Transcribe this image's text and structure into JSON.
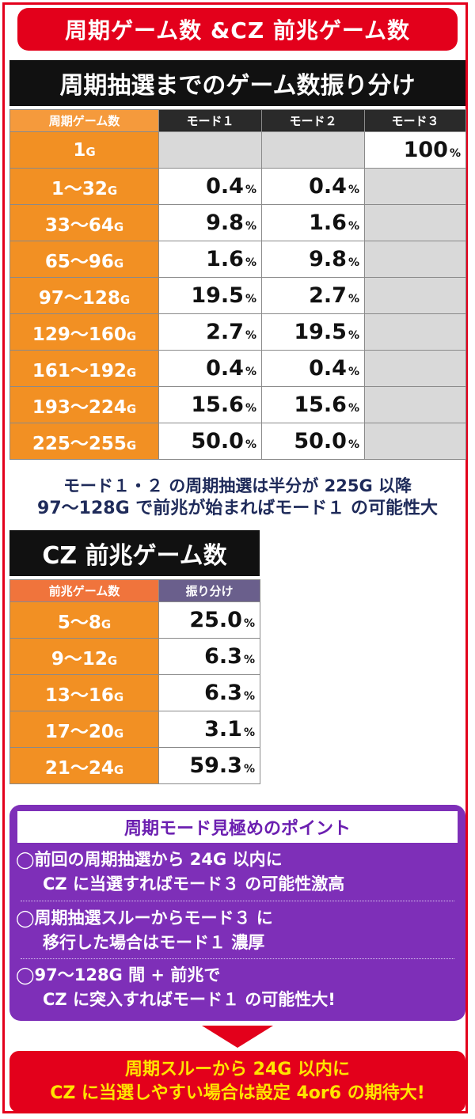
{
  "banner_title": "周期ゲーム数 &CZ 前兆ゲーム数",
  "section1": {
    "title": "周期抽選までのゲーム数振り分け",
    "headers": [
      "周期ゲーム数",
      "モード１",
      "モード２",
      "モード３"
    ],
    "rows": [
      {
        "range": "1",
        "unit": "G",
        "m1": null,
        "m2": null,
        "m3": "100"
      },
      {
        "range": "1〜32",
        "unit": "G",
        "m1": "0.4",
        "m2": "0.4",
        "m3": null
      },
      {
        "range": "33〜64",
        "unit": "G",
        "m1": "9.8",
        "m2": "1.6",
        "m3": null
      },
      {
        "range": "65〜96",
        "unit": "G",
        "m1": "1.6",
        "m2": "9.8",
        "m3": null
      },
      {
        "range": "97〜128",
        "unit": "G",
        "m1": "19.5",
        "m2": "2.7",
        "m3": null
      },
      {
        "range": "129〜160",
        "unit": "G",
        "m1": "2.7",
        "m2": "19.5",
        "m3": null
      },
      {
        "range": "161〜192",
        "unit": "G",
        "m1": "0.4",
        "m2": "0.4",
        "m3": null
      },
      {
        "range": "193〜224",
        "unit": "G",
        "m1": "15.6",
        "m2": "15.6",
        "m3": null
      },
      {
        "range": "225〜255",
        "unit": "G",
        "m1": "50.0",
        "m2": "50.0",
        "m3": null
      }
    ],
    "pct": "%",
    "note_line1": "モード１・２ の周期抽選は半分が 225G 以降",
    "note_line2": "97〜128G で前兆が始まればモード１ の可能性大"
  },
  "section2": {
    "title": "CZ 前兆ゲーム数",
    "headers": [
      "前兆ゲーム数",
      "振り分け"
    ],
    "rows": [
      {
        "range": "5〜8",
        "unit": "G",
        "value": "25.0"
      },
      {
        "range": "9〜12",
        "unit": "G",
        "value": "6.3"
      },
      {
        "range": "13〜16",
        "unit": "G",
        "value": "6.3"
      },
      {
        "range": "17〜20",
        "unit": "G",
        "value": "3.1"
      },
      {
        "range": "21〜24",
        "unit": "G",
        "value": "59.3"
      }
    ]
  },
  "points": {
    "title": "周期モード見極めのポイント",
    "items": [
      {
        "line1": "◯前回の周期抽選から 24G 以内に",
        "line2": "CZ に当選すればモード３ の可能性激高"
      },
      {
        "line1": "◯周期抽選スルーからモード３ に",
        "line2": "移行した場合はモード１ 濃厚"
      },
      {
        "line1": "◯97〜128G 間 + 前兆で",
        "line2": "CZ に突入すればモード１ の可能性大!"
      }
    ]
  },
  "conclusion": {
    "line1": "周期スルーから 24G 以内に",
    "line2": "CZ に当選しやすい場合は設定 4or6 の期待大!"
  }
}
